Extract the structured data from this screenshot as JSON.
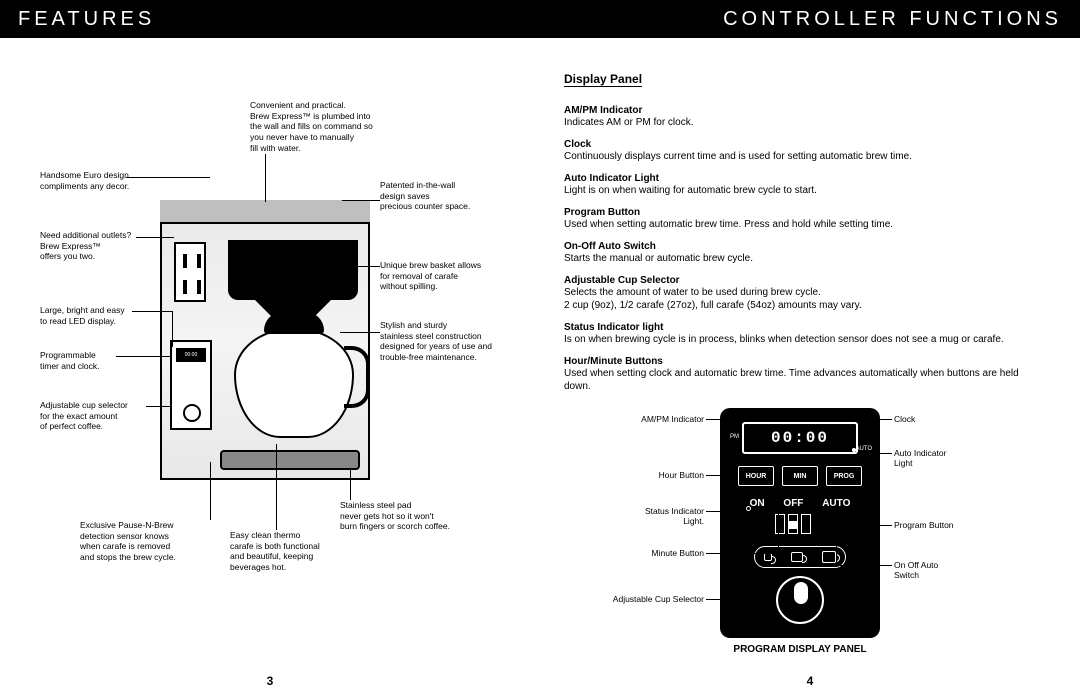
{
  "colors": {
    "bar_bg": "#000000",
    "bar_text": "#ffffff",
    "text": "#000000",
    "panel_bg": "#000000",
    "panel_fg": "#ffffff"
  },
  "left": {
    "title": "FEATURES",
    "page_num": "3",
    "callouts": {
      "euro_design": "Handsome Euro design\ncompliments any decor.",
      "outlets": "Need additional outlets?\nBrew Express™\noffers you two.",
      "led": "Large, bright and easy\nto read LED display.",
      "timer": "Programmable\ntimer and clock.",
      "selector": "Adjustable cup selector\nfor the exact amount\nof perfect coffee.",
      "pause": "Exclusive Pause-N-Brew\ndetection sensor knows\nwhen carafe is removed\nand stops the brew cycle.",
      "plumbed": "Convenient and practical.\nBrew Express™ is plumbed into\nthe wall and fills on command so\nyou never have to manually\nfill with water.",
      "inwall": "Patented in-the-wall\ndesign saves\nprecious counter space.",
      "basket": "Unique brew basket allows\nfor removal of carafe\nwithout spilling.",
      "steel": "Stylish and sturdy\nstainless steel construction\ndesigned for years of use and\ntrouble-free maintenance.",
      "pad": "Stainless steel pad\nnever gets hot so it won't\nburn fingers or scorch coffee.",
      "thermo": "Easy clean thermo\ncarafe is both functional\nand beautiful, keeping\nbeverages hot.",
      "panel_disp": "00:00"
    }
  },
  "right": {
    "title": "CONTROLLER FUNCTIONS",
    "page_num": "4",
    "section": "Display Panel",
    "items": [
      {
        "t": "AM/PM Indicator",
        "d": "Indicates AM or PM for clock."
      },
      {
        "t": "Clock",
        "d": "Continuously displays current time and is used for setting automatic brew time."
      },
      {
        "t": "Auto Indicator Light",
        "d": "Light is on when waiting for automatic brew cycle to start."
      },
      {
        "t": "Program  Button",
        "d": "Used when setting automatic brew time. Press and hold while setting time."
      },
      {
        "t": "On-Off Auto Switch",
        "d": "Starts the manual or automatic brew cycle."
      },
      {
        "t": "Adjustable Cup Selector",
        "d": "Selects the amount of water to be used during brew cycle.\n2 cup (9oz), 1/2 carafe (27oz), full carafe (54oz) amounts may vary."
      },
      {
        "t": "Status Indicator light",
        "d": "Is on when brewing cycle is in process, blinks when detection sensor does not see a mug or carafe."
      },
      {
        "t": "Hour/Minute Buttons",
        "d": "Used when setting clock and automatic brew time.  Time advances automatically when buttons are held down."
      }
    ],
    "panel": {
      "display": "00:00",
      "pm": "PM",
      "auto": "AUTO",
      "btn_hour": "HOUR",
      "btn_min": "MIN",
      "btn_prog": "PROG",
      "sw_on": "ON",
      "sw_off": "OFF",
      "sw_auto": "AUTO",
      "caption": "PROGRAM DISPLAY PANEL"
    },
    "labels": {
      "ampm": "AM/PM Indicator",
      "hour": "Hour Button",
      "status": "Status Indicator\nLight.",
      "minute": "Minute Button",
      "acs": "Adjustable Cup Selector",
      "clock": "Clock",
      "ail": "Auto Indicator\nLight",
      "prog": "Program Button",
      "ooa": "On Off Auto\nSwitch"
    }
  }
}
